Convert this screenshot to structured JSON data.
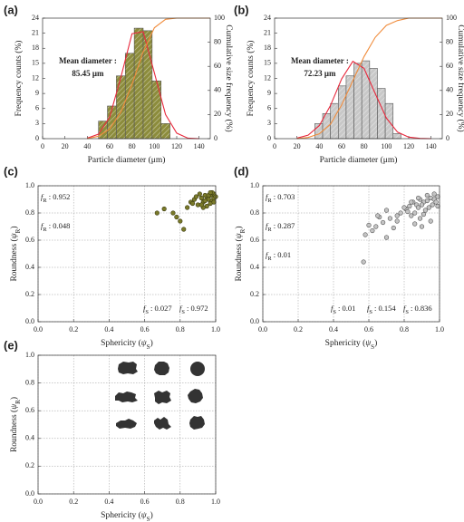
{
  "chart_data": [
    {
      "type": "histogram",
      "panel_label": "(a)",
      "bins": [
        50,
        58,
        66,
        74,
        82,
        90,
        98,
        106,
        114
      ],
      "values": [
        3.5,
        6.5,
        12.5,
        17,
        22,
        21.5,
        11.5,
        3
      ],
      "color": "#8c8c3c",
      "lines": [
        {
          "x": [
            40,
            50,
            60,
            70,
            80,
            90,
            100,
            110,
            120,
            130,
            140
          ],
          "values": [
            0.1,
            0.9,
            4.3,
            12.2,
            20.9,
            21.3,
            13.1,
            4.8,
            1.1,
            0.1,
            0
          ],
          "color": "#e8283c"
        },
        {
          "x": [
            40,
            50,
            60,
            70,
            80,
            90,
            100,
            110,
            120,
            130,
            140,
            150
          ],
          "values": [
            0,
            2,
            8,
            22,
            45,
            72,
            92,
            99,
            100,
            100,
            100,
            100
          ],
          "color": "#f08c3c",
          "axis": "y2"
        }
      ],
      "annotation": [
        "Mean diameter :",
        "85.45 μm"
      ],
      "x_label": "Particle diameter (μm)",
      "y_label": "Frequency counts (%)",
      "y2_label": "Cumulative size frequency (%)",
      "xlim": [
        0,
        150
      ],
      "xticks": [
        0,
        20,
        40,
        60,
        80,
        100,
        120,
        140
      ],
      "ylim": [
        0,
        24
      ],
      "yticks": [
        0,
        3,
        6,
        9,
        12,
        15,
        18,
        21,
        24
      ],
      "y2lim": [
        0,
        100
      ],
      "y2ticks": [
        0,
        20,
        40,
        60,
        80,
        100
      ]
    },
    {
      "type": "histogram",
      "panel_label": "(b)",
      "bins": [
        36,
        43,
        50,
        57,
        64,
        71,
        78,
        85,
        92,
        99,
        106,
        113
      ],
      "values": [
        3,
        5,
        7,
        10.5,
        12.5,
        15,
        15.5,
        14,
        10,
        7,
        1
      ],
      "color": "#c8c8c8",
      "lines": [
        {
          "x": [
            20,
            30,
            40,
            50,
            60,
            70,
            80,
            90,
            100,
            110,
            120,
            130,
            140
          ],
          "values": [
            0.1,
            0.7,
            2.6,
            6.6,
            11.9,
            15.4,
            14.0,
            9.0,
            4.1,
            1.3,
            0.3,
            0.05,
            0
          ],
          "color": "#e8283c"
        },
        {
          "x": [
            20,
            30,
            40,
            50,
            60,
            70,
            80,
            90,
            100,
            110,
            120,
            130,
            140,
            150
          ],
          "values": [
            0,
            1,
            4,
            12,
            28,
            48,
            68,
            84,
            94,
            98,
            100,
            100,
            100,
            100
          ],
          "color": "#f08c3c",
          "axis": "y2"
        }
      ],
      "annotation": [
        "Mean diameter :",
        "72.23 μm"
      ],
      "x_label": "Particle diameter (μm)",
      "y_label": "Frequency counts (%)",
      "y2_label": "Cumulative size frequency (%)",
      "xlim": [
        0,
        150
      ],
      "xticks": [
        0,
        20,
        40,
        60,
        80,
        100,
        120,
        140
      ],
      "ylim": [
        0,
        24
      ],
      "yticks": [
        0,
        3,
        6,
        9,
        12,
        15,
        18,
        21,
        24
      ],
      "y2lim": [
        0,
        100
      ],
      "y2ticks": [
        0,
        20,
        40,
        60,
        80,
        100
      ]
    },
    {
      "type": "scatter",
      "panel_label": "(c)",
      "x": [
        0.92,
        0.95,
        0.97,
        0.99,
        0.93,
        0.96,
        0.98,
        0.9,
        0.94,
        0.97,
        0.99,
        0.91,
        0.95,
        0.98,
        0.88,
        0.93,
        0.96,
        1.0,
        0.89,
        0.94,
        0.97,
        0.99,
        0.92,
        0.86,
        0.84,
        0.8,
        0.76,
        0.71,
        0.67,
        0.82,
        0.78,
        0.87
      ],
      "y": [
        0.91,
        0.92,
        0.93,
        0.94,
        0.88,
        0.9,
        0.89,
        0.86,
        0.93,
        0.87,
        0.91,
        0.94,
        0.85,
        0.95,
        0.9,
        0.84,
        0.93,
        0.92,
        0.92,
        0.89,
        0.95,
        0.88,
        0.86,
        0.88,
        0.84,
        0.74,
        0.8,
        0.83,
        0.8,
        0.68,
        0.77,
        0.87
      ],
      "color": "#7a7a2a",
      "edge": "#3a3a10",
      "xlim": [
        0,
        1
      ],
      "ylim": [
        0,
        1
      ],
      "xticks": [
        {
          "value": 0,
          "label": "0.0"
        },
        0.2,
        0.4,
        0.6,
        0.8,
        {
          "value": 1,
          "label": "1.0"
        }
      ],
      "yticks": [
        {
          "value": 0,
          "label": "0.0"
        },
        0.2,
        0.4,
        0.6,
        0.8,
        {
          "value": 1,
          "label": "1.0"
        }
      ],
      "grid": true,
      "x_label": [
        "Sphericity (",
        "ψ",
        "S",
        ")"
      ],
      "y_label": [
        "Roundness (",
        "ψ",
        "R",
        ")"
      ],
      "notes": {
        "left": [
          [
            "f",
            "R",
            " : 0.952"
          ],
          [
            "f",
            "R",
            " : 0.048"
          ]
        ],
        "bottom": [
          [
            "f",
            "S",
            " : 0.027"
          ],
          [
            "f",
            "S",
            " : 0.972"
          ]
        ]
      }
    },
    {
      "type": "scatter",
      "panel_label": "(d)",
      "x": [
        0.95,
        0.97,
        0.99,
        0.93,
        0.91,
        0.89,
        0.87,
        0.85,
        0.83,
        0.81,
        0.96,
        0.94,
        0.92,
        0.9,
        0.88,
        0.86,
        0.84,
        0.98,
        0.97,
        0.93,
        0.91,
        0.89,
        0.82,
        0.8,
        0.78,
        0.76,
        0.74,
        0.72,
        0.7,
        0.68,
        0.66,
        0.64,
        0.62,
        0.6,
        0.58,
        0.57,
        0.9,
        0.86,
        0.84,
        0.76,
        0.7,
        0.99,
        0.95,
        0.88,
        0.65
      ],
      "y": [
        0.91,
        0.9,
        0.92,
        0.89,
        0.88,
        0.9,
        0.86,
        0.88,
        0.85,
        0.83,
        0.86,
        0.84,
        0.82,
        0.86,
        0.84,
        0.8,
        0.78,
        0.88,
        0.94,
        0.93,
        0.79,
        0.76,
        0.81,
        0.84,
        0.8,
        0.74,
        0.69,
        0.76,
        0.82,
        0.73,
        0.77,
        0.7,
        0.67,
        0.71,
        0.64,
        0.44,
        0.7,
        0.72,
        0.88,
        0.78,
        0.62,
        0.85,
        0.74,
        0.91,
        0.78
      ],
      "color": "#c4c4c4",
      "edge": "#555555",
      "xlim": [
        0,
        1
      ],
      "ylim": [
        0,
        1
      ],
      "xticks": [
        {
          "value": 0,
          "label": "0.0"
        },
        0.2,
        0.4,
        0.6,
        0.8,
        {
          "value": 1,
          "label": "1.0"
        }
      ],
      "yticks": [
        {
          "value": 0,
          "label": "0.0"
        },
        0.2,
        0.4,
        0.6,
        0.8,
        {
          "value": 1,
          "label": "1.0"
        }
      ],
      "grid": true,
      "x_label": [
        "Sphericity (",
        "ψ",
        "S",
        ")"
      ],
      "y_label": [
        "Roundness (",
        "ψ",
        "R",
        ")"
      ],
      "notes": {
        "left": [
          [
            "f",
            "R",
            " : 0.703"
          ],
          [
            "f",
            "R",
            " : 0.287"
          ],
          [
            "f",
            "R",
            " : 0.01"
          ]
        ],
        "bottom": [
          [
            "f",
            "S",
            " : 0.01"
          ],
          [
            "f",
            "S",
            " : 0.154"
          ],
          [
            "f",
            "S",
            " : 0.836"
          ]
        ]
      }
    },
    {
      "type": "scatter",
      "panel_label": "(e)",
      "xlim": [
        0,
        1
      ],
      "ylim": [
        0,
        1
      ],
      "xticks": [
        {
          "value": 0,
          "label": "0.0"
        },
        0.2,
        0.4,
        0.6,
        0.8,
        {
          "value": 1,
          "label": "1.0"
        }
      ],
      "yticks": [
        {
          "value": 0,
          "label": "0.0"
        },
        0.2,
        0.4,
        0.6,
        0.8,
        {
          "value": 1,
          "label": "1.0"
        }
      ],
      "grid": true,
      "x_label": [
        "Sphericity (",
        "ψ",
        "S",
        ")"
      ],
      "y_label": [
        "Roundness (",
        "ψ",
        "R",
        ")"
      ]
    }
  ]
}
